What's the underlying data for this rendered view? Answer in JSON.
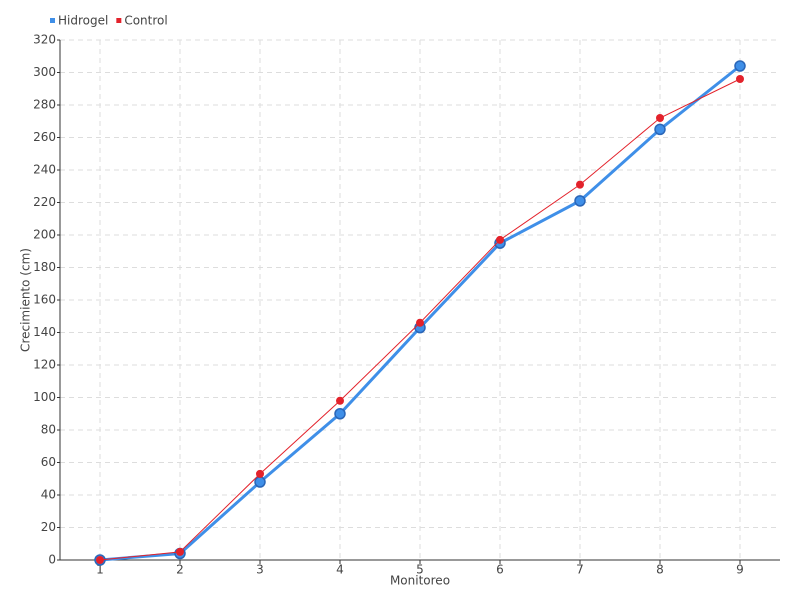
{
  "chart_data": {
    "type": "line",
    "x_label": "Monitoreo",
    "y_label": "Crecimiento (cm)",
    "categories": [
      "1",
      "2",
      "3",
      "4",
      "5",
      "6",
      "7",
      "8",
      "9"
    ],
    "series": [
      {
        "name": "Hidrogel",
        "color": "#3f8fe8",
        "values": [
          0,
          4,
          48,
          90,
          143,
          195,
          221,
          265,
          304
        ]
      },
      {
        "name": "Control",
        "color": "#e3222b",
        "values": [
          0,
          5,
          53,
          98,
          146,
          197,
          231,
          272,
          296
        ]
      }
    ],
    "ylim": [
      0,
      320
    ],
    "yticks": [
      0,
      20,
      40,
      60,
      80,
      100,
      120,
      140,
      160,
      180,
      200,
      220,
      240,
      260,
      280,
      300,
      320
    ],
    "grid": true,
    "legend": "top-left"
  }
}
